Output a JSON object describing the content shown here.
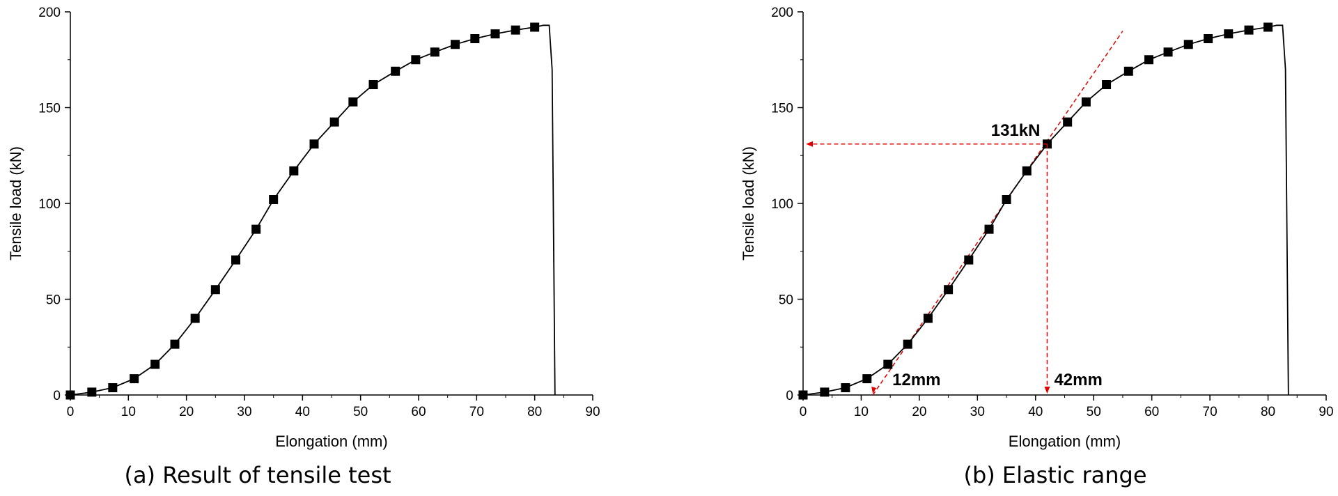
{
  "chart_data": [
    {
      "type": "line",
      "caption": "(a) Result of tensile test",
      "xlabel": "Elongation (mm)",
      "ylabel": "Tensile load (kN)",
      "xlim": [
        0,
        90
      ],
      "ylim": [
        0,
        200
      ],
      "xticks": [
        0,
        10,
        20,
        30,
        40,
        50,
        60,
        70,
        80,
        90
      ],
      "yticks": [
        0,
        50,
        100,
        150,
        200
      ],
      "grid": false,
      "series": [
        {
          "name": "Tensile test",
          "marker": "square",
          "x": [
            0,
            3.7,
            7.3,
            11,
            14.6,
            18,
            21.5,
            25,
            28.5,
            32,
            35,
            38.5,
            42,
            45.5,
            48.7,
            52.2,
            56,
            59.5,
            62.8,
            66.3,
            69.7,
            73.2,
            76.7,
            80
          ],
          "y": [
            0,
            1.5,
            3.8,
            8.5,
            16,
            26.5,
            40,
            55,
            70.5,
            86.5,
            102,
            117,
            131,
            142.5,
            153,
            162,
            169,
            175,
            179,
            183,
            186,
            188.5,
            190.5,
            192
          ]
        }
      ],
      "tail": {
        "x": [
          80,
          81.5,
          82.5,
          83,
          83.5
        ],
        "y": [
          192,
          193,
          193,
          170,
          0
        ]
      },
      "annotations": []
    },
    {
      "type": "line",
      "caption": "(b) Elastic range",
      "xlabel": "Elongation (mm)",
      "ylabel": "Tensile load (kN)",
      "xlim": [
        0,
        90
      ],
      "ylim": [
        0,
        200
      ],
      "xticks": [
        0,
        10,
        20,
        30,
        40,
        50,
        60,
        70,
        80,
        90
      ],
      "yticks": [
        0,
        50,
        100,
        150,
        200
      ],
      "grid": false,
      "series": [
        {
          "name": "Tensile test",
          "marker": "square",
          "x": [
            0,
            3.7,
            7.3,
            11,
            14.6,
            18,
            21.5,
            25,
            28.5,
            32,
            35,
            38.5,
            42,
            45.5,
            48.7,
            52.2,
            56,
            59.5,
            62.8,
            66.3,
            69.7,
            73.2,
            76.7,
            80
          ],
          "y": [
            0,
            1.5,
            3.8,
            8.5,
            16,
            26.5,
            40,
            55,
            70.5,
            86.5,
            102,
            117,
            131,
            142.5,
            153,
            162,
            169,
            175,
            179,
            183,
            186,
            188.5,
            190.5,
            192
          ]
        }
      ],
      "tail": {
        "x": [
          80,
          81.5,
          82.5,
          83,
          83.5
        ],
        "y": [
          192,
          193,
          193,
          170,
          0
        ]
      },
      "elastic_line": {
        "x": [
          12,
          55
        ],
        "y": [
          0,
          190
        ]
      },
      "annotations": [
        {
          "text": "131kN",
          "x": 42,
          "y": 131
        },
        {
          "text": "12mm",
          "x": 12,
          "y": 0
        },
        {
          "text": "42mm",
          "x": 42,
          "y": 0
        }
      ],
      "accent_color": "#e00000"
    }
  ]
}
